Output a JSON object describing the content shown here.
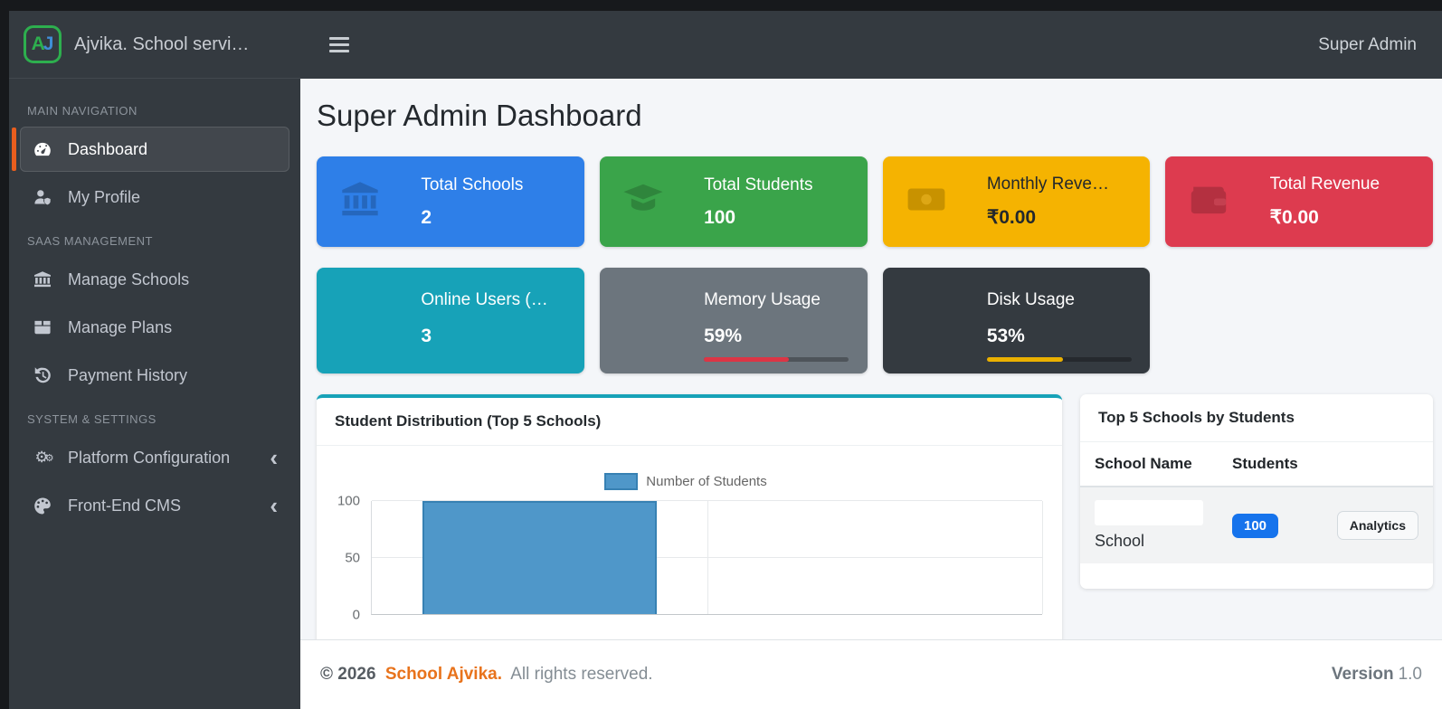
{
  "brand": {
    "logo_a": "A",
    "logo_j": "J",
    "title": "Ajvika. School servi…"
  },
  "topbar": {
    "user_label": "Super Admin"
  },
  "sidebar": {
    "sections": [
      {
        "label": "MAIN NAVIGATION",
        "items": [
          {
            "label": "Dashboard",
            "icon": "speedometer-icon",
            "active": true
          },
          {
            "label": "My Profile",
            "icon": "user-shield-icon"
          }
        ]
      },
      {
        "label": "SAAS MANAGEMENT",
        "items": [
          {
            "label": "Manage Schools",
            "icon": "bank-icon"
          },
          {
            "label": "Manage Plans",
            "icon": "box-icon"
          },
          {
            "label": "Payment History",
            "icon": "history-icon"
          }
        ]
      },
      {
        "label": "SYSTEM & SETTINGS",
        "items": [
          {
            "label": "Platform Configuration",
            "icon": "gears-icon",
            "chevron": "‹"
          },
          {
            "label": "Front-End CMS",
            "icon": "palette-icon",
            "chevron": "‹"
          }
        ]
      }
    ]
  },
  "page": {
    "title": "Super Admin Dashboard"
  },
  "stat_cards": [
    {
      "label": "Total Schools",
      "value": "2",
      "color": "#2e7fe8",
      "icon": "bank-icon",
      "text": "light"
    },
    {
      "label": "Total Students",
      "value": "100",
      "color": "#3aa44a",
      "icon": "graduation-cap-icon",
      "text": "light"
    },
    {
      "label": "Monthly Reve…",
      "value": "₹0.00",
      "color": "#f5b301",
      "icon": "money-bill-icon",
      "text": "dark"
    },
    {
      "label": "Total Revenue",
      "value": "₹0.00",
      "color": "#dd3b4f",
      "icon": "wallet-icon",
      "text": "light"
    }
  ],
  "usage_cards": [
    {
      "label": "Online Users (…",
      "value": "3",
      "color": "#17a2b8"
    },
    {
      "label": "Memory Usage",
      "value": "59%",
      "color": "#6c757d",
      "progress": 59,
      "bar_color": "#dc3545"
    },
    {
      "label": "Disk Usage",
      "value": "53%",
      "color": "#343a40",
      "progress": 53,
      "bar_color": "#eab000"
    }
  ],
  "chart_card": {
    "title": "Student Distribution (Top 5 Schools)",
    "accent": "#17a2b8"
  },
  "chart_data": {
    "type": "bar",
    "title": "Student Distribution (Top 5 Schools)",
    "legend": [
      {
        "label": "Number of Students",
        "color": "#4f97c9"
      }
    ],
    "legend_position": "top",
    "categories": [
      "",
      ""
    ],
    "values": [
      100,
      0
    ],
    "ylabel": "",
    "xlabel": "",
    "ylim": [
      0,
      100
    ],
    "yticks": [
      0,
      50,
      100
    ],
    "grid": true,
    "bar_color": "#4f97c9",
    "bar_border": "#3781b3"
  },
  "schools_card": {
    "title": "Top 5 Schools by Students",
    "columns": [
      "School Name",
      "Students"
    ],
    "rows": [
      {
        "name_redacted": true,
        "name_visible": "School",
        "students": "100",
        "action": "Analytics"
      }
    ]
  },
  "footer": {
    "copyright_prefix": "© 2026",
    "brand": "School Ajvika.",
    "suffix": "All rights reserved.",
    "version_label": "Version",
    "version_value": "1.0"
  }
}
